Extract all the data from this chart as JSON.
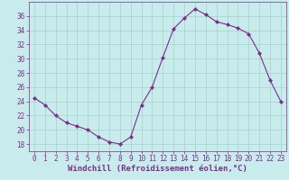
{
  "x": [
    0,
    1,
    2,
    3,
    4,
    5,
    6,
    7,
    8,
    9,
    10,
    11,
    12,
    13,
    14,
    15,
    16,
    17,
    18,
    19,
    20,
    21,
    22,
    23
  ],
  "y": [
    24.5,
    23.5,
    22.0,
    21.0,
    20.5,
    20.0,
    19.0,
    18.3,
    18.0,
    19.0,
    23.5,
    26.0,
    30.2,
    34.2,
    35.7,
    37.0,
    36.2,
    35.2,
    34.8,
    34.3,
    33.5,
    30.8,
    27.0,
    24.0
  ],
  "line_color": "#7b2d8b",
  "marker": "D",
  "marker_size": 2.2,
  "bg_color": "#c8ecec",
  "grid_color": "#a8d0d0",
  "xlabel": "Windchill (Refroidissement éolien,°C)",
  "ylim": [
    17,
    38
  ],
  "xlim": [
    -0.5,
    23.5
  ],
  "yticks": [
    18,
    20,
    22,
    24,
    26,
    28,
    30,
    32,
    34,
    36
  ],
  "xticks": [
    0,
    1,
    2,
    3,
    4,
    5,
    6,
    7,
    8,
    9,
    10,
    11,
    12,
    13,
    14,
    15,
    16,
    17,
    18,
    19,
    20,
    21,
    22,
    23
  ],
  "tick_color": "#7b2d8b",
  "label_fontsize": 6.5,
  "tick_fontsize": 5.5
}
